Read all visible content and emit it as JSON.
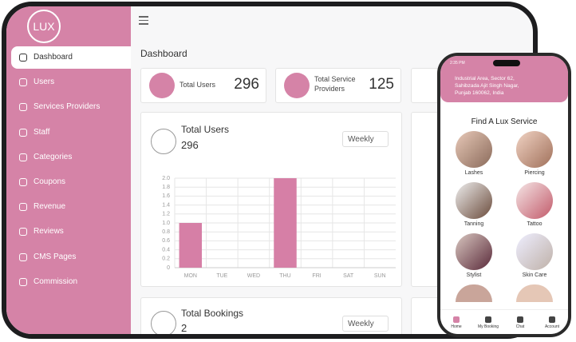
{
  "sidebar": {
    "logo": "LUX",
    "items": [
      "Dashboard",
      "Users",
      "Services Providers",
      "Staff",
      "Categories",
      "Coupons",
      "Revenue",
      "Reviews",
      "CMS Pages",
      "Commission"
    ]
  },
  "header": {
    "title": "Dashboard"
  },
  "stats": [
    {
      "label": "Total Users",
      "value": "296"
    },
    {
      "label": "Total Service Providers",
      "value": "125"
    }
  ],
  "chart_data": {
    "type": "bar",
    "title": "Total Users",
    "total": "296",
    "filter": "Weekly",
    "categories": [
      "MON",
      "TUE",
      "WED",
      "THU",
      "FRI",
      "SAT",
      "SUN"
    ],
    "values": [
      1,
      0,
      0,
      2,
      0,
      0,
      0
    ],
    "color": "#d67fa6",
    "ylim": [
      0,
      2
    ],
    "yticks": [
      0,
      0.2,
      0.4,
      0.6,
      0.8,
      {
        "value": 1,
        "label": "1.0"
      },
      1.2,
      1.4,
      1.6,
      1.8,
      {
        "value": 2,
        "label": "2.0"
      }
    ],
    "grid": true
  },
  "bookings": {
    "title": "Total Bookings",
    "total": "2",
    "filter": "Weekly"
  },
  "phone": {
    "time": "2:35 PM",
    "address": "Industrial Area, Sector 62, Sahibzada Ajit Singh Nagar, Punjab 160062, India",
    "heading": "Find A Lux Service",
    "services": [
      "Lashes",
      "Piercing",
      "Tanning",
      "Tattoo",
      "Stylist",
      "Skin Care"
    ],
    "tabs": [
      "Home",
      "My Booking",
      "Chat",
      "Account"
    ]
  }
}
